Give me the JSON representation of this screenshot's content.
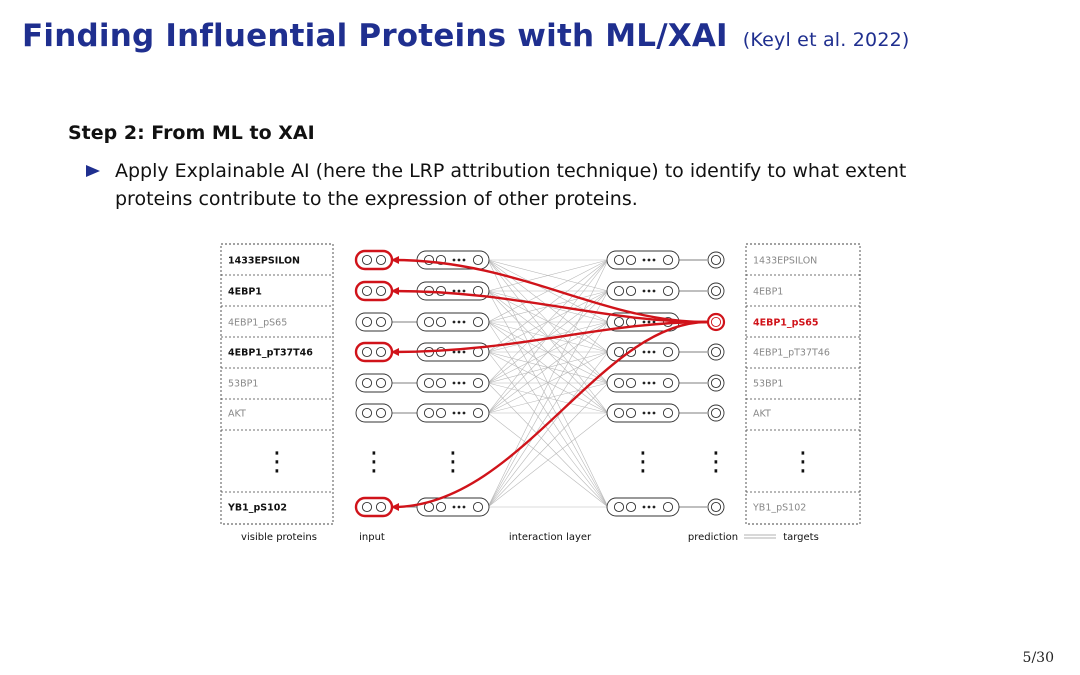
{
  "slide": {
    "title": "Finding Influential Proteins with ML/XAI",
    "citation": "(Keyl et al. 2022)",
    "step_heading": "Step 2: From ML to XAI",
    "bullet": "Apply Explainable AI (here the LRP attribution technique) to identify to what extent proteins contribute to the expression of other proteins.",
    "page_number": "5/30"
  },
  "diagram": {
    "accent_color": "#d0131a",
    "visible_proteins": [
      {
        "label": "1433EPSILON",
        "highlighted": true
      },
      {
        "label": "4EBP1",
        "highlighted": true
      },
      {
        "label": "4EBP1_pS65",
        "highlighted": false
      },
      {
        "label": "4EBP1_pT37T46",
        "highlighted": true
      },
      {
        "label": "53BP1",
        "highlighted": false
      },
      {
        "label": "AKT",
        "highlighted": false
      },
      {
        "label": "YB1_pS102",
        "highlighted": true
      }
    ],
    "targets": [
      {
        "label": "1433EPSILON",
        "selected": false
      },
      {
        "label": "4EBP1",
        "selected": false
      },
      {
        "label": "4EBP1_pS65",
        "selected": true
      },
      {
        "label": "4EBP1_pT37T46",
        "selected": false
      },
      {
        "label": "53BP1",
        "selected": false
      },
      {
        "label": "AKT",
        "selected": false
      },
      {
        "label": "YB1_pS102",
        "selected": false
      }
    ],
    "ellipsis": "⋮",
    "labels": {
      "visible_proteins": "visible proteins",
      "input": "input",
      "interaction_layer": "interaction layer",
      "prediction": "prediction",
      "targets": "targets"
    }
  }
}
